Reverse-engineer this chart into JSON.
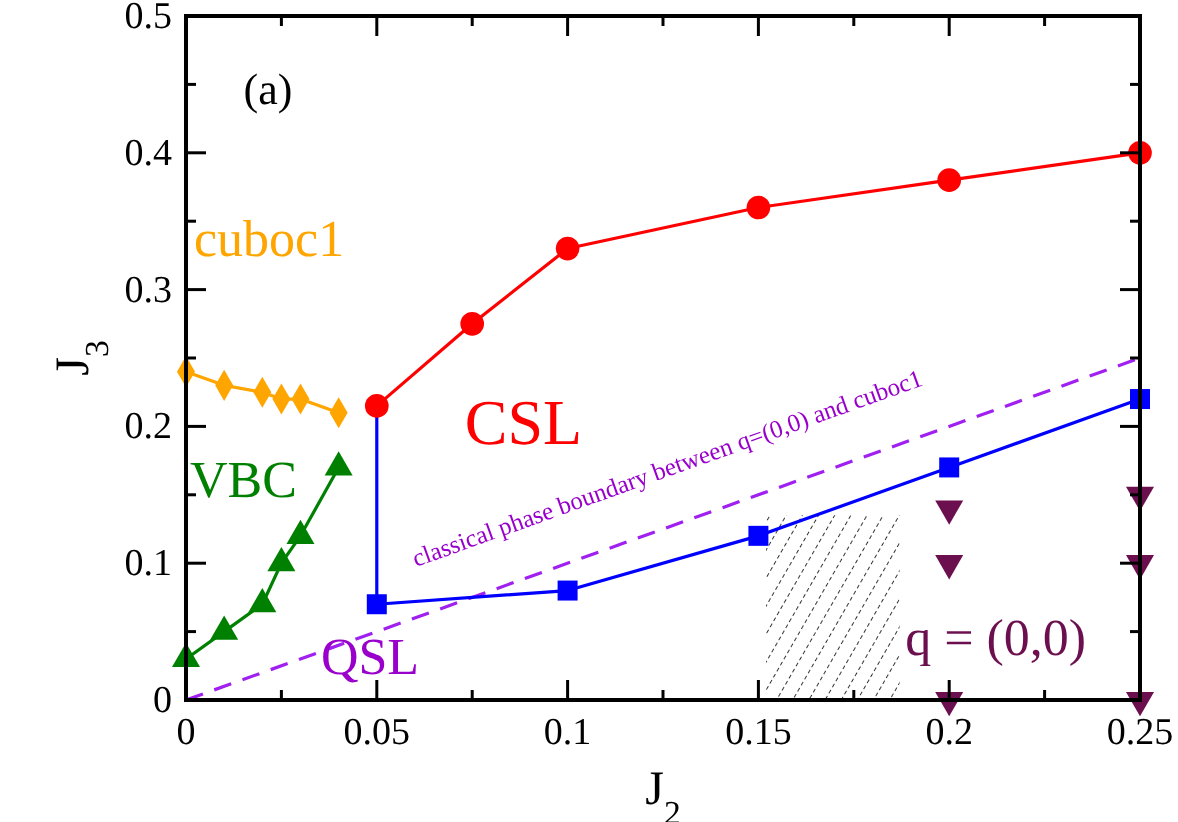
{
  "chart_data": {
    "type": "line",
    "xlabel": "J$_{2}$",
    "ylabel": "J$_{3}$",
    "xlim": [
      0,
      0.25
    ],
    "ylim": [
      0,
      0.5
    ],
    "xticks": [
      0,
      {
        "value": 0.025,
        "label": null
      },
      {
        "value": 0.05,
        "label": "0.05"
      },
      {
        "value": 0.075,
        "label": null
      },
      {
        "value": 0.1,
        "label": "0.1"
      },
      {
        "value": 0.125,
        "label": null
      },
      {
        "value": 0.15,
        "label": "0.15"
      },
      {
        "value": 0.175,
        "label": null
      },
      {
        "value": 0.2,
        "label": "0.2"
      },
      {
        "value": 0.225,
        "label": null
      },
      {
        "value": 0.25,
        "label": "0.25"
      }
    ],
    "yticks": [
      0,
      {
        "value": 0.05,
        "label": null
      },
      {
        "value": 0.1,
        "label": "0.1"
      },
      {
        "value": 0.15,
        "label": null
      },
      {
        "value": 0.2,
        "label": "0.2"
      },
      {
        "value": 0.25,
        "label": null
      },
      {
        "value": 0.3,
        "label": "0.3"
      },
      {
        "value": 0.35,
        "label": null
      },
      {
        "value": 0.4,
        "label": "0.4"
      },
      {
        "value": 0.45,
        "label": null
      },
      {
        "value": 0.5,
        "label": "0.5"
      }
    ],
    "grid": false,
    "series": [
      {
        "type": "area",
        "color": "#000000",
        "x": [
          0.152,
          0.187
        ],
        "values": [
          0.135,
          0.135
        ]
      },
      {
        "color": "#a020f0",
        "x": [
          0,
          0.25
        ],
        "values": [
          0,
          0.25
        ],
        "line_style": "dashed"
      },
      {
        "name": "cuboc1",
        "color": "#ffa500",
        "x": [
          0,
          0.01,
          0.02,
          0.025,
          0.03,
          0.04
        ],
        "values": [
          0.24,
          0.23,
          0.225,
          0.22,
          0.22,
          0.21
        ],
        "marker": "diamond"
      },
      {
        "name": "VBC",
        "color": "#008000",
        "x": [
          0,
          0.01,
          0.02,
          0.025,
          0.03,
          0.04
        ],
        "values": [
          0.03,
          0.05,
          0.07,
          0.1,
          0.12,
          0.17
        ],
        "marker": "triangle"
      },
      {
        "color": "#0000ff",
        "x": [
          0.05,
          0.05
        ],
        "values": [
          0.215,
          0.07
        ]
      },
      {
        "color": "#0000ff",
        "x": [
          0.05,
          0.1,
          0.15,
          0.2,
          0.25
        ],
        "values": [
          0.07,
          0.08,
          0.12,
          0.17,
          0.22
        ],
        "marker": "square"
      },
      {
        "name": "CSL",
        "color": "#ff0000",
        "x": [
          0.05,
          0.075,
          0.1,
          0.15,
          0.2,
          0.25
        ],
        "values": [
          0.215,
          0.275,
          0.33,
          0.36,
          0.38,
          0.4
        ],
        "marker": "circle"
      },
      {
        "name": "q = (0,0)",
        "type": "scatter",
        "color": "#6b0f4f",
        "x": [
          0.2,
          0.2,
          0.2,
          0.25,
          0.25,
          0.25
        ],
        "values": [
          0.14,
          0.1,
          0,
          0.15,
          0.1,
          0
        ],
        "marker": "triangle-down"
      }
    ],
    "annotations": [
      "(a)",
      "QSL",
      "classical phase boundary between q=(0,0) and cuboc1"
    ]
  }
}
